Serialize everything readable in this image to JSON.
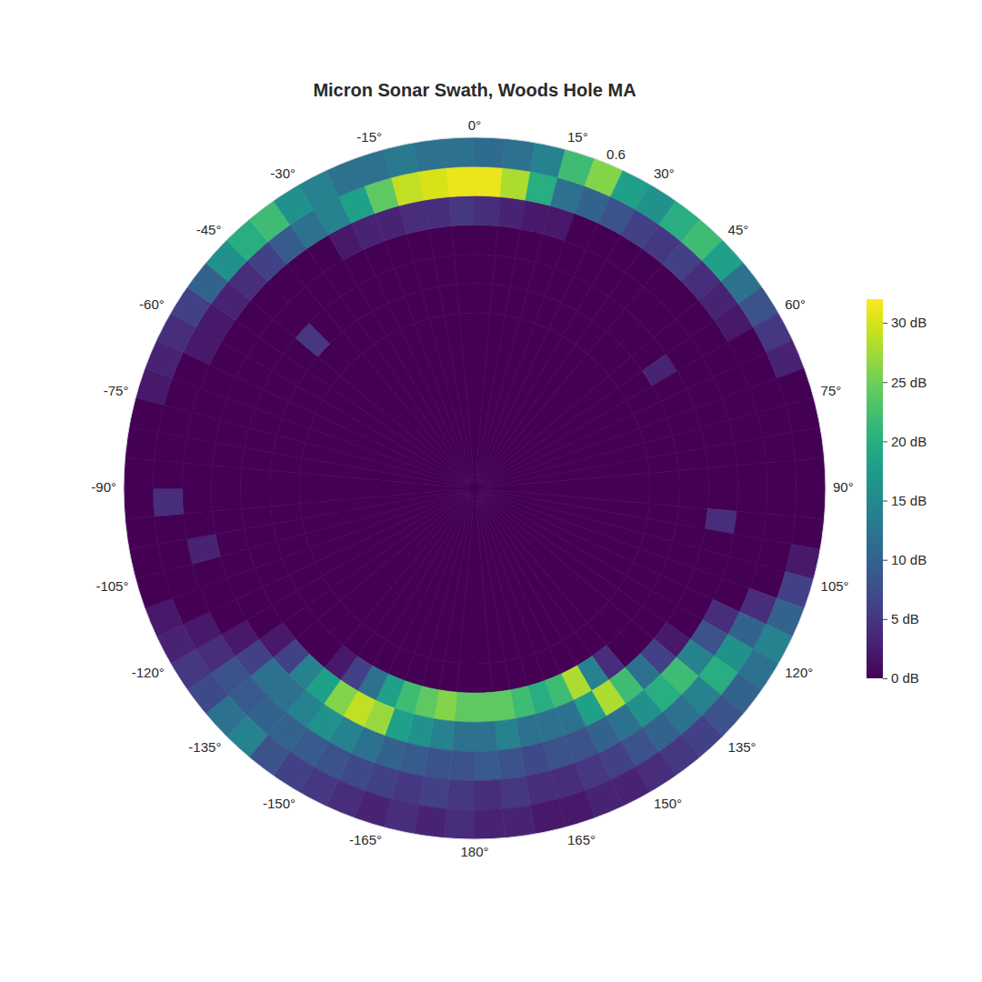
{
  "chart_data": {
    "type": "polar_heatmap",
    "title": "Micron Sonar Swath, Woods Hole MA",
    "color": "viridis",
    "grid": false,
    "theta_bins": [
      -180,
      -175,
      -170,
      -165,
      -160,
      -155,
      -150,
      -145,
      -140,
      -135,
      -130,
      -125,
      -120,
      -115,
      -110,
      -105,
      -100,
      -95,
      -90,
      -85,
      -80,
      -75,
      -70,
      -65,
      -60,
      -55,
      -50,
      -45,
      -40,
      -35,
      -30,
      -25,
      -20,
      -15,
      -10,
      -5,
      0,
      5,
      10,
      15,
      20,
      25,
      30,
      35,
      40,
      45,
      50,
      55,
      60,
      65,
      70,
      75,
      80,
      85,
      90,
      95,
      100,
      105,
      110,
      115,
      120,
      125,
      130,
      135,
      140,
      145,
      150,
      155,
      160,
      165,
      170,
      175,
      180
    ],
    "r_bins": [
      0,
      0.3,
      0.35,
      0.4,
      0.45,
      0.5,
      0.55,
      0.6
    ],
    "rlim": [
      0,
      0.6
    ],
    "rticks": [
      0.6
    ],
    "theta_ticks": [
      {
        "value": 0,
        "label": "0°"
      },
      {
        "value": 15,
        "label": "15°"
      },
      {
        "value": 30,
        "label": "30°"
      },
      {
        "value": 45,
        "label": "45°"
      },
      {
        "value": 60,
        "label": "60°"
      },
      {
        "value": 75,
        "label": "75°"
      },
      {
        "value": 90,
        "label": "90°"
      },
      {
        "value": 105,
        "label": "105°"
      },
      {
        "value": 120,
        "label": "120°"
      },
      {
        "value": 135,
        "label": "135°"
      },
      {
        "value": 150,
        "label": "150°"
      },
      {
        "value": 165,
        "label": "165°"
      },
      {
        "value": 180,
        "label": "180°"
      },
      {
        "value": -165,
        "label": "-165°"
      },
      {
        "value": -150,
        "label": "-150°"
      },
      {
        "value": -135,
        "label": "-135°"
      },
      {
        "value": -120,
        "label": "-120°"
      },
      {
        "value": -105,
        "label": "-105°"
      },
      {
        "value": -90,
        "label": "-90°"
      },
      {
        "value": -75,
        "label": "-75°"
      },
      {
        "value": -60,
        "label": "-60°"
      },
      {
        "value": -45,
        "label": "-45°"
      },
      {
        "value": -30,
        "label": "-30°"
      },
      {
        "value": -15,
        "label": "-15°"
      }
    ],
    "z": [
      [
        0,
        0,
        24,
        12,
        8,
        5,
        4
      ],
      [
        0,
        0,
        26,
        14,
        8,
        6,
        3
      ],
      [
        0,
        0,
        24,
        16,
        9,
        5,
        4
      ],
      [
        0,
        0,
        22,
        18,
        10,
        6,
        3
      ],
      [
        0,
        0,
        18,
        27,
        12,
        7,
        4
      ],
      [
        0,
        0,
        12,
        29,
        14,
        8,
        5
      ],
      [
        0,
        0,
        6,
        26,
        16,
        9,
        6
      ],
      [
        0,
        0,
        2,
        18,
        14,
        10,
        8
      ],
      [
        0,
        0,
        0,
        14,
        12,
        10,
        14
      ],
      [
        0,
        0,
        0,
        6,
        12,
        9,
        12
      ],
      [
        0,
        0,
        0,
        2,
        6,
        8,
        7
      ],
      [
        0,
        0,
        0,
        0,
        2,
        4,
        5
      ],
      [
        0,
        0,
        0,
        0,
        0,
        2,
        3
      ],
      [
        0,
        0,
        0,
        0,
        0,
        0,
        2
      ],
      [
        0,
        0,
        0,
        0,
        0,
        0,
        0
      ],
      [
        0,
        0,
        0,
        0,
        3,
        0,
        0
      ],
      [
        0,
        0,
        0,
        0,
        0,
        0,
        0
      ],
      [
        0,
        0,
        0,
        0,
        0,
        4,
        0
      ],
      [
        0,
        0,
        0,
        0,
        0,
        0,
        0
      ],
      [
        0,
        0,
        0,
        0,
        0,
        0,
        0
      ],
      [
        0,
        0,
        0,
        0,
        0,
        0,
        0
      ],
      [
        0,
        0,
        0,
        0,
        0,
        0,
        2
      ],
      [
        0,
        0,
        0,
        0,
        0,
        0,
        3
      ],
      [
        0,
        0,
        0,
        0,
        0,
        2,
        4
      ],
      [
        0,
        0,
        0,
        0,
        0,
        2,
        6
      ],
      [
        0,
        0,
        0,
        0,
        0,
        3,
        10
      ],
      [
        0,
        0,
        5,
        0,
        0,
        4,
        16
      ],
      [
        0,
        0,
        0,
        0,
        0,
        6,
        20
      ],
      [
        0,
        0,
        0,
        0,
        0,
        9,
        22
      ],
      [
        0,
        0,
        0,
        0,
        0,
        12,
        16
      ],
      [
        0,
        0,
        0,
        0,
        2,
        14,
        14
      ],
      [
        0,
        0,
        0,
        0,
        3,
        18,
        12
      ],
      [
        0,
        0,
        0,
        0,
        3,
        24,
        12
      ],
      [
        0,
        0,
        0,
        0,
        4,
        29,
        13
      ],
      [
        0,
        0,
        0,
        0,
        4,
        30,
        12
      ],
      [
        0,
        0,
        0,
        0,
        5,
        31,
        12
      ],
      [
        0,
        0,
        0,
        0,
        4,
        31,
        11
      ],
      [
        0,
        0,
        0,
        0,
        3,
        28,
        12
      ],
      [
        0,
        0,
        0,
        0,
        2,
        20,
        14
      ],
      [
        0,
        0,
        0,
        0,
        2,
        12,
        22
      ],
      [
        0,
        0,
        0,
        0,
        0,
        10,
        26
      ],
      [
        0,
        0,
        0,
        0,
        0,
        8,
        18
      ],
      [
        0,
        0,
        0,
        0,
        0,
        6,
        16
      ],
      [
        0,
        0,
        0,
        0,
        0,
        5,
        20
      ],
      [
        0,
        0,
        0,
        0,
        0,
        6,
        22
      ],
      [
        0,
        0,
        0,
        0,
        0,
        4,
        18
      ],
      [
        0,
        0,
        0,
        0,
        0,
        3,
        12
      ],
      [
        0,
        0,
        3,
        0,
        0,
        2,
        8
      ],
      [
        0,
        0,
        0,
        0,
        0,
        0,
        5
      ],
      [
        0,
        0,
        0,
        0,
        0,
        0,
        3
      ],
      [
        0,
        0,
        0,
        0,
        0,
        0,
        0
      ],
      [
        0,
        0,
        0,
        0,
        0,
        0,
        0
      ],
      [
        0,
        0,
        0,
        0,
        0,
        0,
        0
      ],
      [
        0,
        0,
        0,
        0,
        0,
        0,
        0
      ],
      [
        0,
        0,
        0,
        0,
        0,
        0,
        0
      ],
      [
        0,
        0,
        0,
        4,
        0,
        0,
        0
      ],
      [
        0,
        0,
        0,
        0,
        0,
        0,
        2
      ],
      [
        0,
        0,
        0,
        0,
        0,
        0,
        6
      ],
      [
        0,
        0,
        0,
        0,
        0,
        4,
        10
      ],
      [
        0,
        0,
        0,
        0,
        4,
        10,
        14
      ],
      [
        0,
        0,
        0,
        0,
        8,
        16,
        12
      ],
      [
        0,
        0,
        0,
        2,
        14,
        20,
        10
      ],
      [
        0,
        0,
        0,
        6,
        22,
        14,
        8
      ],
      [
        0,
        0,
        0,
        12,
        20,
        12,
        6
      ],
      [
        0,
        0,
        4,
        22,
        16,
        10,
        5
      ],
      [
        0,
        0,
        14,
        28,
        12,
        8,
        4
      ],
      [
        0,
        0,
        28,
        18,
        10,
        6,
        3
      ],
      [
        0,
        0,
        22,
        12,
        8,
        5,
        3
      ],
      [
        0,
        0,
        20,
        12,
        8,
        4,
        2
      ],
      [
        0,
        0,
        22,
        12,
        7,
        4,
        2
      ],
      [
        0,
        0,
        24,
        14,
        8,
        5,
        3
      ],
      [
        0,
        0,
        24,
        12,
        9,
        4,
        3
      ]
    ],
    "colorbar": {
      "lim": [
        0,
        32
      ],
      "ticks": [
        {
          "value": 0,
          "label": "0 dB"
        },
        {
          "value": 5,
          "label": "5 dB"
        },
        {
          "value": 10,
          "label": "10 dB"
        },
        {
          "value": 15,
          "label": "15 dB"
        },
        {
          "value": 20,
          "label": "20 dB"
        },
        {
          "value": 25,
          "label": "25 dB"
        },
        {
          "value": 30,
          "label": "30 dB"
        }
      ]
    }
  }
}
